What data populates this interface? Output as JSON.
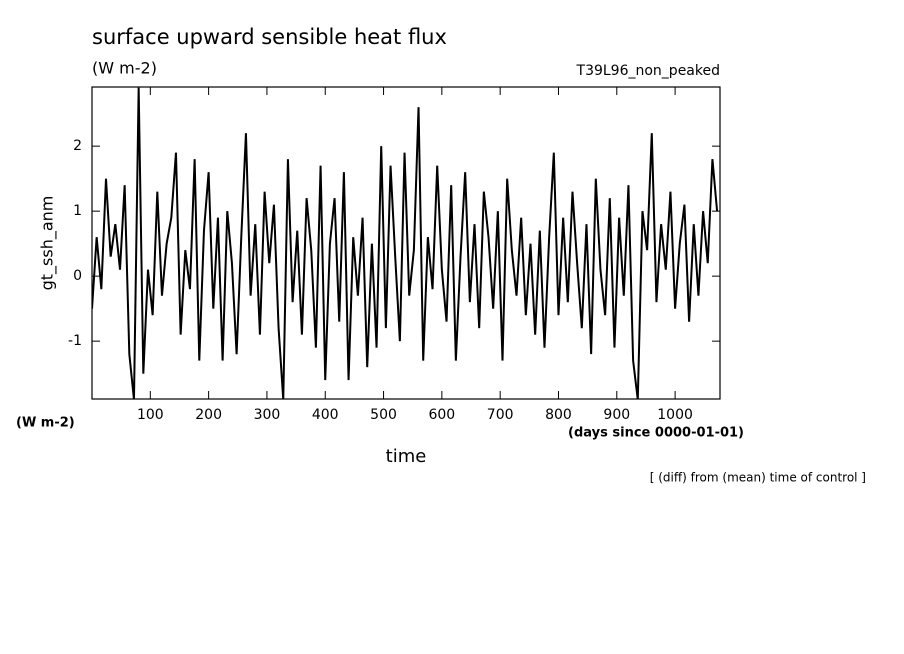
{
  "chart_data": {
    "type": "line",
    "title": "surface upward sensible heat flux",
    "subtitle": "(W m-2)",
    "run_label": "T39L96_non_peaked",
    "y_label": "gt_ssh_anm",
    "y_units": "(W m-2)",
    "x_label": "time",
    "x_units": "(days since 0000-01-01)",
    "annotation": "[ (diff) from (mean) time of control ]",
    "xlim": [
      0,
      1077
    ],
    "ylim": [
      -1.89,
      2.91
    ],
    "xticks": [
      100,
      200,
      300,
      400,
      500,
      600,
      700,
      800,
      900,
      1000
    ],
    "yticks": [
      -1,
      0,
      1,
      2
    ],
    "series": [
      {
        "color": "#000000",
        "x": [
          0,
          8,
          16,
          24,
          32,
          40,
          48,
          56,
          64,
          72,
          80,
          88,
          96,
          104,
          112,
          120,
          128,
          136,
          144,
          152,
          160,
          168,
          176,
          184,
          192,
          200,
          208,
          216,
          224,
          232,
          240,
          248,
          256,
          264,
          272,
          280,
          288,
          296,
          304,
          312,
          320,
          328,
          336,
          344,
          352,
          360,
          368,
          376,
          384,
          392,
          400,
          408,
          416,
          424,
          432,
          440,
          448,
          456,
          464,
          472,
          480,
          488,
          496,
          504,
          512,
          520,
          528,
          536,
          544,
          552,
          560,
          568,
          576,
          584,
          592,
          600,
          608,
          616,
          624,
          632,
          640,
          648,
          656,
          664,
          672,
          680,
          688,
          696,
          704,
          712,
          720,
          728,
          736,
          744,
          752,
          760,
          768,
          776,
          784,
          792,
          800,
          808,
          816,
          824,
          832,
          840,
          848,
          856,
          864,
          872,
          880,
          888,
          896,
          904,
          912,
          920,
          928,
          936,
          944,
          952,
          960,
          968,
          976,
          984,
          992,
          1000,
          1008,
          1016,
          1024,
          1032,
          1040,
          1048,
          1056,
          1064,
          1072
        ],
        "values": [
          -0.5,
          0.6,
          -0.2,
          1.5,
          0.3,
          0.8,
          0.1,
          1.4,
          -1.2,
          -1.9,
          2.9,
          -1.5,
          0.1,
          -0.6,
          1.3,
          -0.3,
          0.5,
          0.9,
          1.9,
          -0.9,
          0.4,
          -0.2,
          1.8,
          -1.3,
          0.7,
          1.6,
          -0.5,
          0.9,
          -1.3,
          1.0,
          0.2,
          -1.2,
          0.6,
          2.2,
          -0.3,
          0.8,
          -0.9,
          1.3,
          0.2,
          1.1,
          -0.8,
          -1.9,
          1.8,
          -0.4,
          0.7,
          -0.9,
          1.2,
          0.4,
          -1.1,
          1.7,
          -1.6,
          0.5,
          1.2,
          -0.7,
          1.6,
          -1.6,
          0.6,
          -0.3,
          0.9,
          -1.4,
          0.5,
          -1.1,
          2.0,
          -0.8,
          1.7,
          0.3,
          -1.0,
          1.9,
          -0.3,
          0.4,
          2.6,
          -1.3,
          0.6,
          -0.2,
          1.7,
          0.1,
          -0.7,
          1.4,
          -1.3,
          0.3,
          1.6,
          -0.4,
          0.8,
          -0.8,
          1.3,
          0.6,
          -0.5,
          1.0,
          -1.3,
          1.5,
          0.4,
          -0.3,
          0.9,
          -0.6,
          0.5,
          -0.9,
          0.7,
          -1.1,
          0.6,
          1.9,
          -0.6,
          0.9,
          -0.4,
          1.3,
          0.2,
          -0.8,
          0.8,
          -1.2,
          1.5,
          0.1,
          -0.6,
          1.2,
          -1.1,
          0.9,
          -0.3,
          1.4,
          -1.3,
          -1.9,
          1.0,
          0.4,
          2.2,
          -0.4,
          0.8,
          0.1,
          1.3,
          -0.5,
          0.5,
          1.1,
          -0.7,
          0.8,
          -0.3,
          1.0,
          0.2,
          1.8,
          1.0
        ]
      }
    ]
  }
}
